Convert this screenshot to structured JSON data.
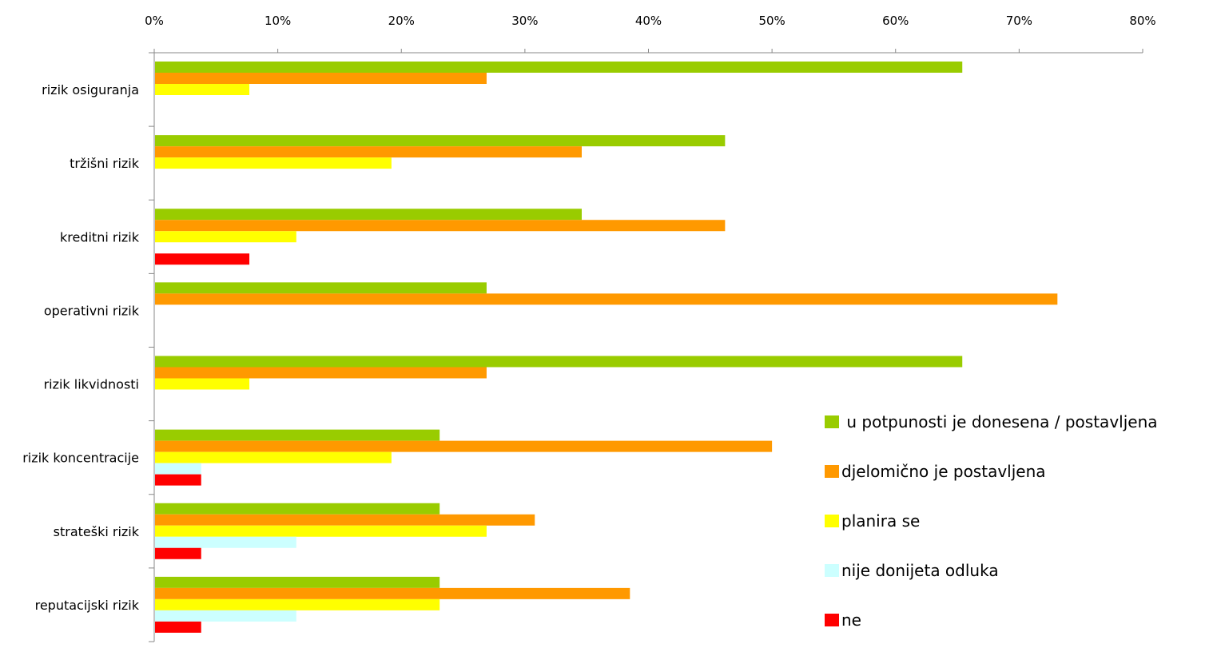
{
  "chart_data": {
    "type": "bar",
    "orientation": "horizontal",
    "categories": [
      "rizik osiguranja",
      "tržišni rizik",
      "kreditni rizik",
      "operativni rizik",
      "rizik likvidnosti",
      "rizik koncentracije",
      "strateški rizik",
      "reputacijski rizik"
    ],
    "series": [
      {
        "name": " u potpunosti je donesena / postavljena",
        "color": "#99CC00",
        "values": [
          65.4,
          46.2,
          34.6,
          26.9,
          65.4,
          23.1,
          23.1,
          23.1
        ]
      },
      {
        "name": "djelomično je postavljena",
        "color": "#FF9900",
        "values": [
          26.9,
          34.6,
          46.2,
          73.1,
          26.9,
          50.0,
          30.8,
          38.5
        ]
      },
      {
        "name": "planira se",
        "color": "#FFFF00",
        "values": [
          7.7,
          19.2,
          11.5,
          0,
          7.7,
          19.2,
          26.9,
          23.1
        ]
      },
      {
        "name": "nije donijeta odluka",
        "color": "#CCFFFF",
        "values": [
          0,
          0,
          0,
          0,
          0,
          3.8,
          11.5,
          11.5
        ]
      },
      {
        "name": "ne",
        "color": "#FF0000",
        "values": [
          0,
          0,
          7.7,
          0,
          0,
          3.8,
          3.8,
          3.8
        ]
      }
    ],
    "xlim": [
      0,
      80
    ],
    "xticks": [
      "0%",
      "10%",
      "20%",
      "30%",
      "40%",
      "50%",
      "60%",
      "70%",
      "80%"
    ],
    "x_axis_position": "top",
    "grid": false,
    "legend_position": "lower-right"
  }
}
